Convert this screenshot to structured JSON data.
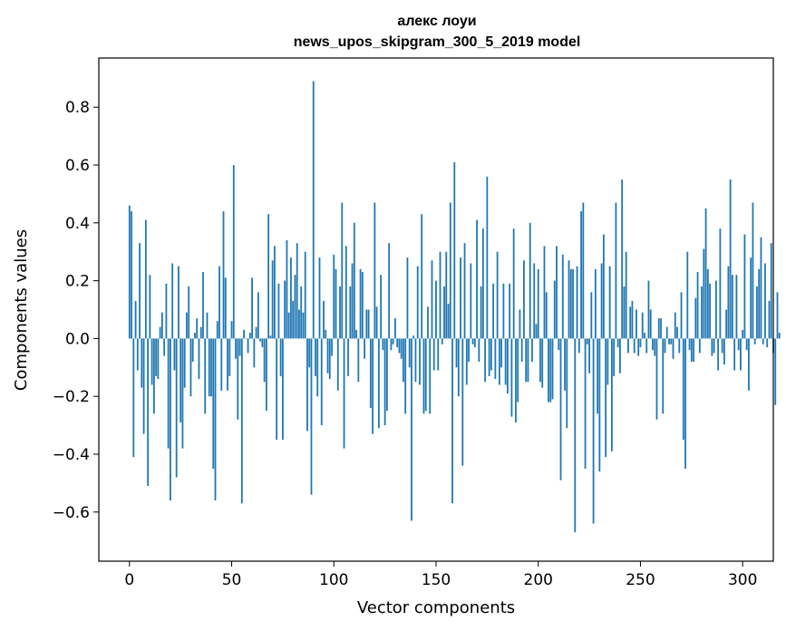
{
  "chart_data": {
    "type": "bar",
    "title": "алекс лоуи",
    "subtitle": "news_upos_skipgram_300_5_2019 model",
    "xlabel": "Vector components",
    "ylabel": "Components values",
    "xlim": [
      -15,
      315
    ],
    "ylim": [
      -0.77,
      0.97
    ],
    "xticks": [
      0,
      50,
      100,
      150,
      200,
      250,
      300
    ],
    "yticks": [
      -0.6,
      -0.4,
      -0.2,
      0.0,
      0.2,
      0.4,
      0.6,
      0.8
    ],
    "xtick_labels": [
      "0",
      "50",
      "100",
      "150",
      "200",
      "250",
      "300"
    ],
    "ytick_labels": [
      "−0.6",
      "−0.4",
      "−0.2",
      "0.0",
      "0.2",
      "0.4",
      "0.6",
      "0.8"
    ],
    "bar_color": "#1f77b4",
    "grid": false,
    "values": [
      0.46,
      0.44,
      -0.41,
      0.13,
      -0.11,
      0.33,
      -0.17,
      -0.33,
      0.41,
      -0.51,
      0.22,
      -0.16,
      -0.26,
      -0.13,
      -0.14,
      0.04,
      0.09,
      -0.06,
      0.19,
      -0.38,
      -0.56,
      0.26,
      -0.11,
      -0.48,
      0.25,
      -0.29,
      -0.38,
      -0.17,
      0.09,
      0.18,
      -0.2,
      -0.08,
      0.02,
      0.07,
      -0.14,
      0.04,
      0.23,
      -0.26,
      0.09,
      -0.2,
      -0.2,
      -0.45,
      -0.56,
      0.06,
      0.25,
      -0.18,
      0.44,
      0.21,
      -0.18,
      -0.13,
      0.06,
      0.6,
      -0.07,
      -0.28,
      -0.06,
      -0.57,
      0.03,
      0.0,
      -0.05,
      0.02,
      0.21,
      -0.1,
      0.04,
      0.16,
      -0.01,
      -0.03,
      -0.15,
      -0.25,
      0.43,
      0.01,
      0.27,
      0.32,
      -0.35,
      0.19,
      -0.13,
      -0.35,
      0.2,
      0.34,
      0.09,
      0.28,
      0.13,
      0.22,
      0.33,
      0.1,
      0.18,
      0.09,
      0.3,
      -0.32,
      -0.1,
      -0.54,
      0.89,
      -0.13,
      -0.2,
      0.28,
      -0.3,
      0.13,
      0.03,
      -0.12,
      -0.14,
      -0.06,
      0.29,
      0.24,
      -0.18,
      0.18,
      0.47,
      -0.38,
      0.32,
      -0.13,
      0.18,
      0.26,
      0.4,
      0.03,
      -0.15,
      0.24,
      0.23,
      -0.07,
      0.1,
      0.1,
      -0.24,
      -0.33,
      0.47,
      0.11,
      -0.31,
      0.22,
      -0.04,
      -0.3,
      -0.25,
      0.33,
      -0.04,
      -0.02,
      0.07,
      -0.03,
      -0.05,
      -0.07,
      -0.15,
      -0.26,
      0.28,
      -0.1,
      -0.63,
      0.01,
      -0.15,
      0.25,
      -0.16,
      0.43,
      -0.26,
      -0.25,
      0.11,
      -0.26,
      0.27,
      -0.11,
      0.2,
      -0.11,
      0.3,
      -0.02,
      0.18,
      0.3,
      0.12,
      0.47,
      -0.57,
      0.61,
      -0.1,
      -0.2,
      0.28,
      -0.44,
      0.33,
      -0.16,
      -0.08,
      0.26,
      -0.02,
      -0.03,
      0.41,
      -0.08,
      0.18,
      0.38,
      -0.15,
      0.56,
      -0.13,
      -0.11,
      0.19,
      -0.14,
      0.3,
      -0.16,
      -0.1,
      0.19,
      -0.16,
      -0.19,
      0.19,
      -0.27,
      0.38,
      -0.29,
      -0.22,
      0.1,
      -0.08,
      0.27,
      -0.15,
      -0.15,
      0.4,
      -0.08,
      0.26,
      0.05,
      0.24,
      -0.15,
      -0.17,
      0.32,
      0.16,
      -0.22,
      -0.22,
      -0.21,
      0.2,
      0.32,
      -0.04,
      -0.49,
      0.29,
      -0.18,
      -0.31,
      0.27,
      0.24,
      0.24,
      -0.67,
      0.25,
      -0.05,
      0.44,
      0.47,
      -0.45,
      -0.02,
      -0.12,
      0.16,
      -0.64,
      0.24,
      -0.26,
      -0.46,
      0.26,
      0.36,
      -0.41,
      -0.16,
      0.25,
      -0.39,
      -0.13,
      0.47,
      -0.03,
      -0.12,
      0.55,
      0.18,
      0.3,
      -0.05,
      0.11,
      0.13,
      -0.05,
      0.1,
      -0.06,
      -0.03,
      0.09,
      0.02,
      -0.05,
      0.2,
      0.1,
      -0.04,
      -0.06,
      -0.28,
      0.07,
      0.07,
      -0.26,
      -0.05,
      0.04,
      -0.02,
      -0.02,
      -0.07,
      0.09,
      0.04,
      -0.05,
      0.16,
      -0.35,
      -0.45,
      0.3,
      -0.04,
      -0.08,
      -0.08,
      0.14,
      0.23,
      -0.05,
      0.18,
      0.31,
      0.45,
      0.24,
      0.19,
      -0.06,
      -0.05,
      0.2,
      -0.11,
      0.38,
      -0.05,
      -0.09,
      0.1,
      0.25,
      0.55,
      0.22,
      -0.11,
      0.22,
      -0.04,
      -0.11,
      0.03,
      0.36,
      -0.04,
      -0.18,
      0.28,
      0.47,
      -0.02,
      0.18,
      0.24,
      0.35,
      -0.02,
      0.26,
      -0.03,
      0.13,
      0.33,
      -0.05,
      -0.23,
      0.16,
      0.02
    ]
  }
}
